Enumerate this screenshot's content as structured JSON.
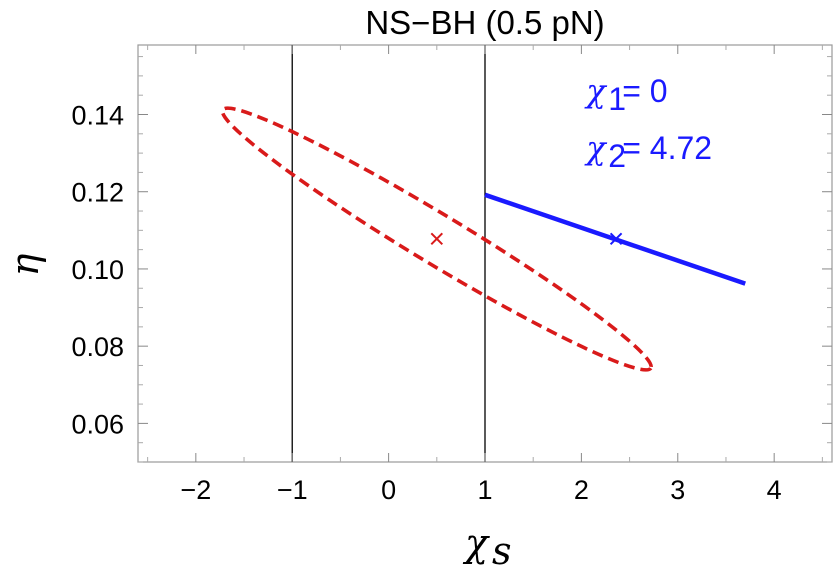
{
  "chart_data": {
    "type": "scatter",
    "title": "NS−BH (0.5 pN)",
    "xlabel": "χ",
    "xlabel_sub": "s",
    "ylabel": "η",
    "xlim": [
      -2.6,
      4.6
    ],
    "ylim": [
      0.05,
      0.158
    ],
    "x_ticks": [
      {
        "value": -2,
        "label": "−2"
      },
      {
        "value": -1,
        "label": "−1"
      },
      {
        "value": 0,
        "label": "0"
      },
      {
        "value": 1,
        "label": "1"
      },
      {
        "value": 2,
        "label": "2"
      },
      {
        "value": 3,
        "label": "3"
      },
      {
        "value": 4,
        "label": "4"
      }
    ],
    "y_ticks": [
      {
        "value": 0.06,
        "label": "0.06"
      },
      {
        "value": 0.08,
        "label": "0.08"
      },
      {
        "value": 0.1,
        "label": "0.10"
      },
      {
        "value": 0.12,
        "label": "0.12"
      },
      {
        "value": 0.14,
        "label": "0.14"
      }
    ],
    "vertical_lines": [
      -1,
      1
    ],
    "grid": false,
    "series": [
      {
        "kind": "ellipse",
        "style": "dashed",
        "color": "#d91a1a",
        "endpoints": [
          [
            -1.72,
            0.1412
          ],
          [
            2.72,
            0.0743
          ]
        ],
        "minor_half_width": 0.0064
      },
      {
        "kind": "line",
        "style": "solid",
        "color": "#1a1aff",
        "points": [
          [
            1.0,
            0.1192
          ],
          [
            3.7,
            0.0962
          ]
        ]
      },
      {
        "kind": "marker",
        "marker": "x",
        "color": "#d91a1a",
        "points": [
          [
            0.5,
            0.1078
          ]
        ]
      },
      {
        "kind": "marker",
        "marker": "x",
        "color": "#1a1aff",
        "points": [
          [
            2.36,
            0.1078
          ]
        ]
      }
    ],
    "annotations": [
      {
        "symbol": "χ",
        "sub": "1",
        "text": " = 0",
        "x": 2.05,
        "y": 0.1432,
        "color": "#1a1aff"
      },
      {
        "symbol": "χ",
        "sub": "2",
        "text": " = 4.72",
        "x": 2.05,
        "y": 0.1285,
        "color": "#1a1aff"
      }
    ]
  }
}
